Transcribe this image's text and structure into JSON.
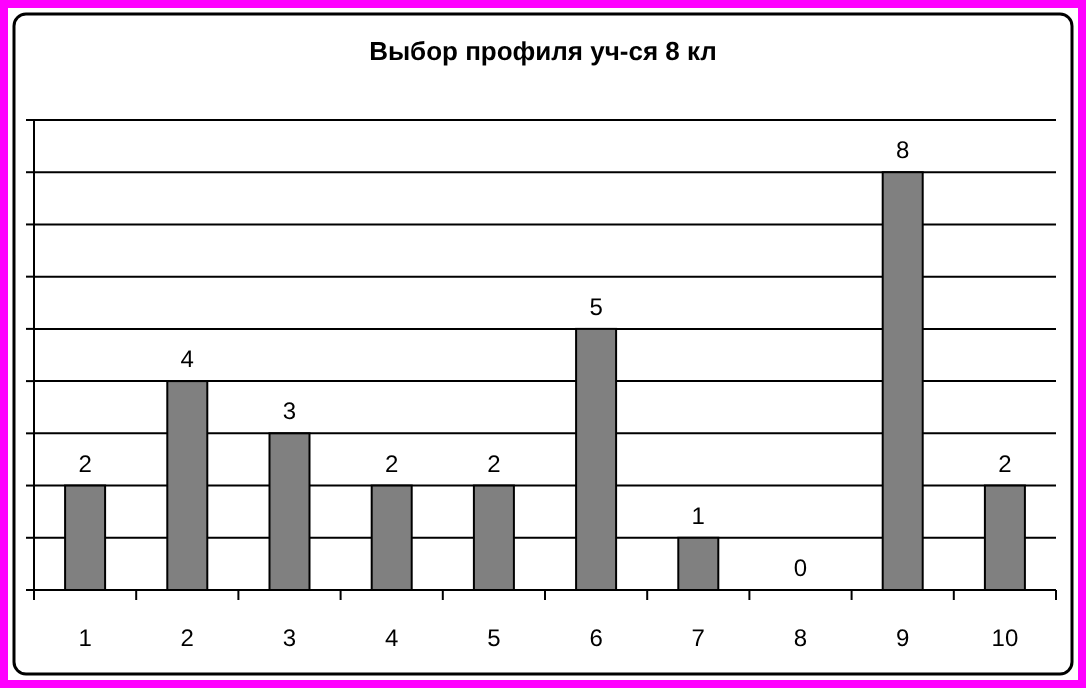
{
  "chart_data": {
    "type": "bar",
    "title": "Выбор профиля уч-ся 8 кл",
    "categories": [
      "1",
      "2",
      "3",
      "4",
      "5",
      "6",
      "7",
      "8",
      "9",
      "10"
    ],
    "values": [
      2,
      4,
      3,
      2,
      2,
      5,
      1,
      0,
      8,
      2
    ],
    "color": "#808080",
    "ylim": [
      0,
      9
    ],
    "yticks": [
      {
        "value": 0,
        "label": null
      },
      {
        "value": 1,
        "label": null
      },
      {
        "value": 2,
        "label": null
      },
      {
        "value": 3,
        "label": null
      },
      {
        "value": 4,
        "label": null
      },
      {
        "value": 5,
        "label": null
      },
      {
        "value": 6,
        "label": null
      },
      {
        "value": 7,
        "label": null
      },
      {
        "value": 8,
        "label": null
      },
      {
        "value": 9,
        "label": null
      }
    ],
    "tick_labels": "x",
    "grid": "y",
    "data_labels": true
  }
}
